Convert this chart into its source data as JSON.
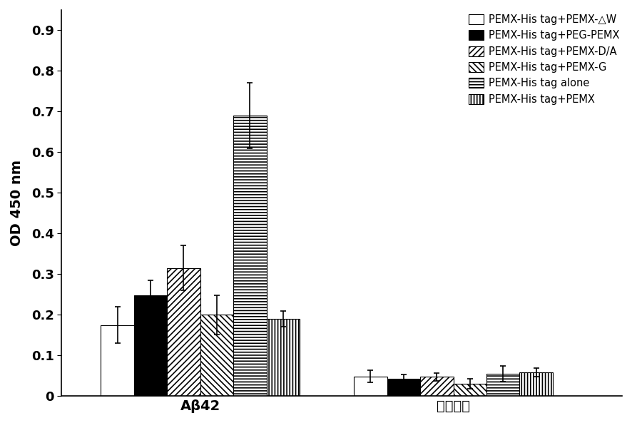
{
  "groups": [
    "Aβ42",
    "阴性对照"
  ],
  "series": [
    {
      "label": "PEMX-His tag+PEMX-△W",
      "hatch": "",
      "facecolor": "white",
      "edgecolor": "black",
      "values": [
        0.175,
        0.048
      ],
      "errors": [
        0.045,
        0.015
      ]
    },
    {
      "label": "PEMX-His tag+PEG-PEMX",
      "hatch": "",
      "facecolor": "black",
      "edgecolor": "black",
      "values": [
        0.247,
        0.043
      ],
      "errors": [
        0.038,
        0.01
      ]
    },
    {
      "label": "PEMX-His tag+PEMX-D/A",
      "hatch": "////",
      "facecolor": "white",
      "edgecolor": "black",
      "values": [
        0.315,
        0.047
      ],
      "errors": [
        0.055,
        0.01
      ]
    },
    {
      "label": "PEMX-His tag+PEMX-G",
      "hatch": "\\\\\\\\",
      "facecolor": "white",
      "edgecolor": "black",
      "values": [
        0.2,
        0.03
      ],
      "errors": [
        0.048,
        0.012
      ]
    },
    {
      "label": "PEMX-His tag alone",
      "hatch": "----",
      "facecolor": "white",
      "edgecolor": "black",
      "values": [
        0.69,
        0.055
      ],
      "errors": [
        0.08,
        0.02
      ]
    },
    {
      "label": "PEMX-His tag+PEMX",
      "hatch": "||||",
      "facecolor": "white",
      "edgecolor": "black",
      "values": [
        0.19,
        0.058
      ],
      "errors": [
        0.02,
        0.01
      ]
    }
  ],
  "ylabel": "OD 450 nm",
  "ylim": [
    0,
    0.95
  ],
  "yticks": [
    0,
    0.1,
    0.2,
    0.3,
    0.4,
    0.5,
    0.6,
    0.7,
    0.8,
    0.9
  ],
  "bar_width": 0.055,
  "group_centers": [
    0.28,
    0.7
  ],
  "xlim": [
    0.05,
    0.98
  ],
  "figsize": [
    8.86,
    5.93
  ],
  "dpi": 100,
  "legend_fontsize": 10.5,
  "axis_fontsize": 14,
  "tick_fontsize": 13
}
